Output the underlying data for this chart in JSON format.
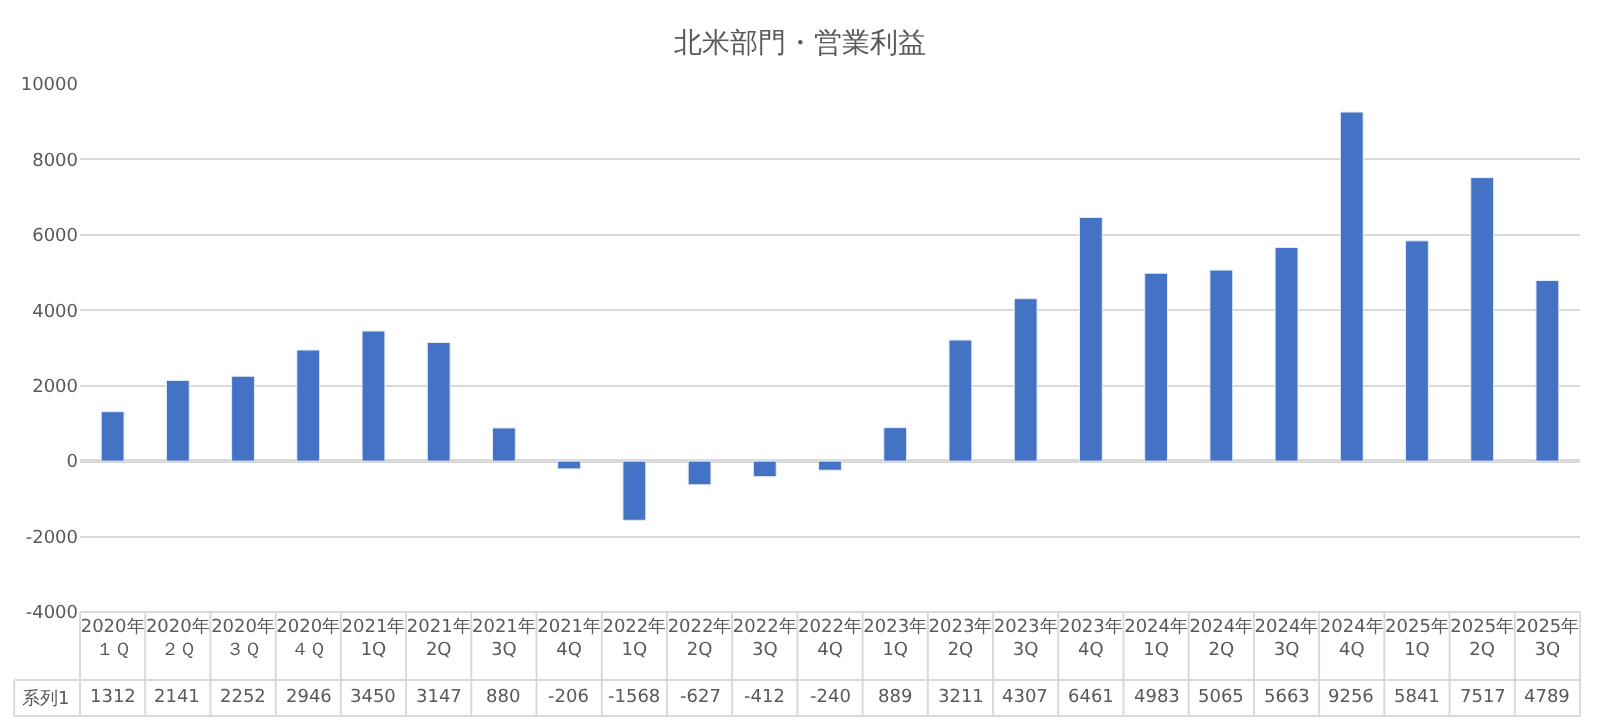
{
  "chart_data": {
    "type": "bar",
    "title": "北米部門・営業利益",
    "categories": [
      "2020年１Ｑ",
      "2020年２Ｑ",
      "2020年３Ｑ",
      "2020年４Ｑ",
      "2021年1Q",
      "2021年2Q",
      "2021年3Q",
      "2021年4Q",
      "2022年1Q",
      "2022年2Q",
      "2022年3Q",
      "2022年4Q",
      "2023年1Q",
      "2023年2Q",
      "2023年3Q",
      "2023年4Q",
      "2024年1Q",
      "2024年2Q",
      "2024年3Q",
      "2024年4Q",
      "2025年1Q",
      "2025年2Q",
      "2025年3Q"
    ],
    "series": [
      {
        "name": "系列1",
        "color": "#4472c4",
        "values": [
          1312,
          2141,
          2252,
          2946,
          3450,
          3147,
          880,
          -206,
          -1568,
          -627,
          -412,
          -240,
          889,
          3211,
          4307,
          6461,
          4983,
          5065,
          5663,
          9256,
          5841,
          7517,
          4789
        ]
      }
    ],
    "ylim": [
      -4000,
      10000
    ],
    "yticks": [
      -4000,
      -2000,
      0,
      2000,
      4000,
      6000,
      8000,
      10000
    ],
    "grid": "y",
    "legend": false,
    "data_labels": true
  }
}
